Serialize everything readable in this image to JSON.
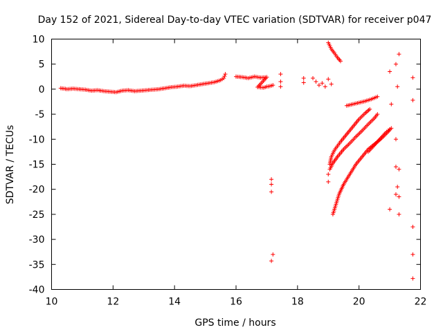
{
  "chart_data": {
    "type": "scatter",
    "title": "Day 152 of 2021, Sidereal Day-to-day VTEC variation (SDTVAR) for receiver p047",
    "xlabel": "GPS time / hours",
    "ylabel": "SDTVAR / TECUs",
    "xlim": [
      10,
      22
    ],
    "ylim": [
      -40,
      10
    ],
    "xticks": [
      10,
      12,
      14,
      16,
      18,
      20,
      22
    ],
    "yticks": [
      10,
      5,
      0,
      -5,
      -10,
      -15,
      -20,
      -25,
      -30,
      -35,
      -40
    ],
    "xtick_labels": [
      "10",
      "12",
      "14",
      "16",
      "18",
      "20",
      "22"
    ],
    "ytick_labels": [
      "10",
      "5",
      "0",
      "-5",
      "-10",
      "-15",
      "-20",
      "-25",
      "-30",
      "-35",
      "-40"
    ],
    "series_color": "#ff0000",
    "marker": "plus",
    "series": [
      {
        "name": "main-band",
        "points": [
          [
            10.3,
            0.2
          ],
          [
            10.5,
            0.0
          ],
          [
            10.7,
            0.1
          ],
          [
            10.9,
            0.0
          ],
          [
            11.1,
            -0.1
          ],
          [
            11.3,
            -0.3
          ],
          [
            11.5,
            -0.2
          ],
          [
            11.7,
            -0.4
          ],
          [
            11.9,
            -0.5
          ],
          [
            12.1,
            -0.6
          ],
          [
            12.3,
            -0.3
          ],
          [
            12.5,
            -0.2
          ],
          [
            12.7,
            -0.4
          ],
          [
            12.9,
            -0.3
          ],
          [
            13.1,
            -0.2
          ],
          [
            13.3,
            -0.1
          ],
          [
            13.5,
            0.0
          ],
          [
            13.7,
            0.2
          ],
          [
            13.9,
            0.4
          ],
          [
            14.1,
            0.5
          ],
          [
            14.3,
            0.7
          ],
          [
            14.5,
            0.6
          ],
          [
            14.7,
            0.8
          ],
          [
            14.9,
            1.0
          ],
          [
            15.1,
            1.2
          ],
          [
            15.3,
            1.4
          ],
          [
            15.5,
            1.8
          ],
          [
            15.6,
            2.2
          ],
          [
            15.65,
            3.0
          ]
        ]
      },
      {
        "name": "cluster-16-17",
        "points": [
          [
            16.0,
            2.5
          ],
          [
            16.2,
            2.4
          ],
          [
            16.4,
            2.2
          ],
          [
            16.6,
            2.5
          ],
          [
            16.8,
            2.3
          ],
          [
            17.0,
            2.4
          ],
          [
            16.7,
            0.4
          ],
          [
            16.9,
            0.3
          ],
          [
            17.0,
            0.5
          ],
          [
            17.1,
            0.6
          ],
          [
            17.2,
            0.8
          ]
        ]
      },
      {
        "name": "cluster-17.4",
        "points": [
          [
            17.45,
            3.0
          ],
          [
            17.45,
            1.5
          ],
          [
            17.45,
            0.5
          ]
        ]
      },
      {
        "name": "drop-17.2",
        "points": [
          [
            17.15,
            -18.0
          ],
          [
            17.15,
            -19.0
          ],
          [
            17.15,
            -20.5
          ],
          [
            17.2,
            -33.0
          ],
          [
            17.15,
            -34.3
          ]
        ]
      },
      {
        "name": "cluster-18.2",
        "points": [
          [
            18.2,
            2.2
          ],
          [
            18.2,
            1.3
          ]
        ]
      },
      {
        "name": "cluster-18.6",
        "points": [
          [
            18.5,
            2.2
          ],
          [
            18.6,
            1.5
          ],
          [
            18.7,
            0.8
          ],
          [
            18.8,
            1.2
          ],
          [
            18.9,
            0.5
          ],
          [
            19.0,
            2.0
          ],
          [
            19.1,
            1.0
          ]
        ]
      },
      {
        "name": "arc-top",
        "points": [
          [
            19.0,
            9.3
          ],
          [
            19.1,
            8.0
          ],
          [
            19.2,
            7.2
          ],
          [
            19.3,
            6.3
          ],
          [
            19.4,
            5.6
          ]
        ]
      },
      {
        "name": "arc-a",
        "points": [
          [
            19.05,
            -15.0
          ],
          [
            19.1,
            -13.5
          ],
          [
            19.2,
            -12.2
          ],
          [
            19.4,
            -10.5
          ],
          [
            19.6,
            -9.0
          ],
          [
            19.8,
            -7.5
          ],
          [
            20.0,
            -6.0
          ],
          [
            20.2,
            -4.8
          ],
          [
            20.35,
            -4.0
          ]
        ]
      },
      {
        "name": "arc-b",
        "points": [
          [
            19.05,
            -16.0
          ],
          [
            19.15,
            -14.8
          ],
          [
            19.3,
            -13.5
          ],
          [
            19.5,
            -12.0
          ],
          [
            19.7,
            -10.8
          ],
          [
            19.9,
            -9.5
          ],
          [
            20.1,
            -8.3
          ],
          [
            20.3,
            -7.0
          ],
          [
            20.5,
            -5.8
          ],
          [
            20.6,
            -5.0
          ]
        ]
      },
      {
        "name": "arc-c",
        "points": [
          [
            19.15,
            -25.0
          ],
          [
            19.25,
            -23.0
          ],
          [
            19.35,
            -21.0
          ],
          [
            19.5,
            -19.0
          ],
          [
            19.7,
            -17.0
          ],
          [
            19.9,
            -15.0
          ],
          [
            20.1,
            -13.5
          ],
          [
            20.3,
            -12.0
          ],
          [
            20.5,
            -11.0
          ],
          [
            20.7,
            -10.0
          ],
          [
            20.9,
            -8.8
          ],
          [
            21.05,
            -7.8
          ]
        ]
      },
      {
        "name": "arc-d",
        "points": [
          [
            19.6,
            -3.3
          ],
          [
            19.8,
            -3.0
          ],
          [
            20.0,
            -2.7
          ],
          [
            20.2,
            -2.4
          ],
          [
            20.4,
            -2.0
          ],
          [
            20.6,
            -1.5
          ]
        ]
      },
      {
        "name": "arc-e",
        "points": [
          [
            20.3,
            -12.5
          ],
          [
            20.45,
            -11.5
          ],
          [
            20.6,
            -10.5
          ],
          [
            20.75,
            -9.5
          ],
          [
            20.9,
            -8.5
          ],
          [
            21.0,
            -8.0
          ]
        ]
      },
      {
        "name": "scatter-19",
        "points": [
          [
            19.0,
            -17.0
          ],
          [
            19.0,
            -18.5
          ]
        ]
      },
      {
        "name": "scatter-21",
        "points": [
          [
            21.0,
            3.5
          ],
          [
            21.05,
            -3.0
          ],
          [
            21.0,
            -24.0
          ],
          [
            21.2,
            5.0
          ],
          [
            21.25,
            0.5
          ],
          [
            21.2,
            -10.0
          ],
          [
            21.2,
            -15.5
          ],
          [
            21.25,
            -19.5
          ],
          [
            21.2,
            -21.0
          ],
          [
            21.3,
            -16.0
          ],
          [
            21.3,
            -21.5
          ],
          [
            21.3,
            -25.0
          ],
          [
            21.3,
            7.0
          ],
          [
            21.75,
            2.3
          ],
          [
            21.75,
            -2.2
          ],
          [
            21.75,
            -27.5
          ],
          [
            21.75,
            -33.0
          ],
          [
            21.75,
            -37.8
          ]
        ]
      }
    ]
  }
}
